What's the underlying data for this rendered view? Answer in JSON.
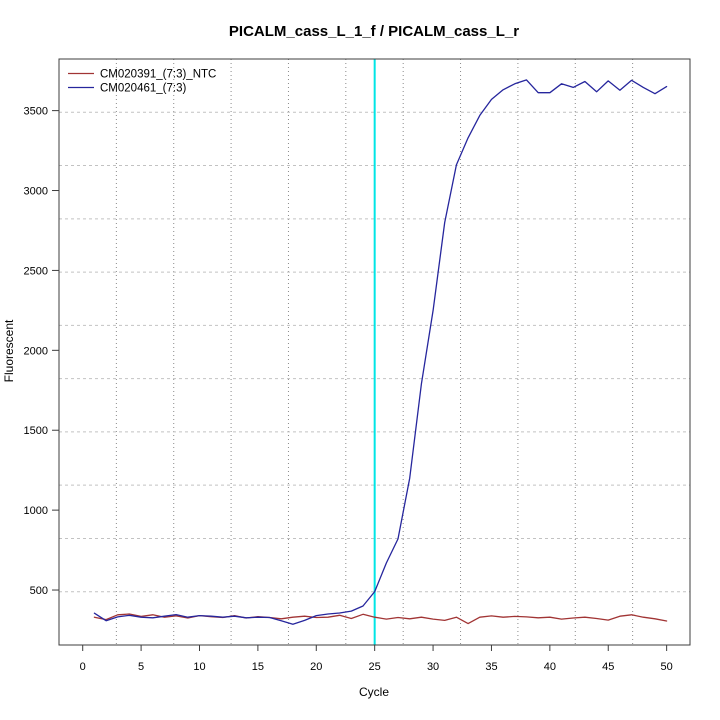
{
  "figure": {
    "background": "#ffffff"
  },
  "chart_data": {
    "type": "line",
    "title": "PICALM_cass_L_1_f / PICALM_cass_L_r",
    "xlabel": "Cycle",
    "ylabel": "Fluorescent",
    "xlim": [
      -2.03,
      52.0
    ],
    "ylim": [
      156,
      3823
    ],
    "x_ticks": [
      0,
      5,
      10,
      15,
      20,
      25,
      30,
      35,
      40,
      45,
      50
    ],
    "y_ticks": [
      500,
      1000,
      1500,
      2000,
      2500,
      3000,
      3500
    ],
    "grid": {
      "on": true,
      "nx": 11,
      "ny": 11,
      "v_color": "#8a8a8a",
      "h_color": "#c2c2c2"
    },
    "vline": {
      "x": 25,
      "color": "#00e5e5"
    },
    "axis_color": "#3c3c3c",
    "text_color": "#000000",
    "legend": {
      "position": "top-left"
    },
    "x": [
      1,
      2,
      3,
      4,
      5,
      6,
      7,
      8,
      9,
      10,
      11,
      12,
      13,
      14,
      15,
      16,
      17,
      18,
      19,
      20,
      21,
      22,
      23,
      24,
      25,
      26,
      27,
      28,
      29,
      30,
      31,
      32,
      33,
      34,
      35,
      36,
      37,
      38,
      39,
      40,
      41,
      42,
      43,
      44,
      45,
      46,
      47,
      48,
      49,
      50
    ],
    "series": [
      {
        "name": "CM020391_(7:3)_NTC",
        "color": "#a13434",
        "values": [
          330,
          315,
          345,
          350,
          335,
          345,
          330,
          338,
          325,
          340,
          333,
          328,
          340,
          325,
          333,
          328,
          320,
          330,
          336,
          328,
          330,
          342,
          322,
          348,
          330,
          318,
          328,
          320,
          330,
          318,
          310,
          330,
          290,
          330,
          338,
          330,
          335,
          332,
          326,
          330,
          318,
          325,
          330,
          322,
          312,
          336,
          345,
          330,
          320,
          306
        ]
      },
      {
        "name": "CM020461_(7:3)",
        "color": "#26269d",
        "values": [
          355,
          308,
          332,
          342,
          330,
          326,
          336,
          346,
          330,
          340,
          336,
          330,
          336,
          326,
          330,
          328,
          308,
          286,
          310,
          340,
          350,
          356,
          368,
          400,
          490,
          670,
          820,
          1200,
          1790,
          2250,
          2800,
          3160,
          3330,
          3470,
          3570,
          3630,
          3668,
          3692,
          3612,
          3612,
          3668,
          3645,
          3682,
          3618,
          3686,
          3628,
          3690,
          3645,
          3606,
          3650
        ]
      }
    ]
  }
}
